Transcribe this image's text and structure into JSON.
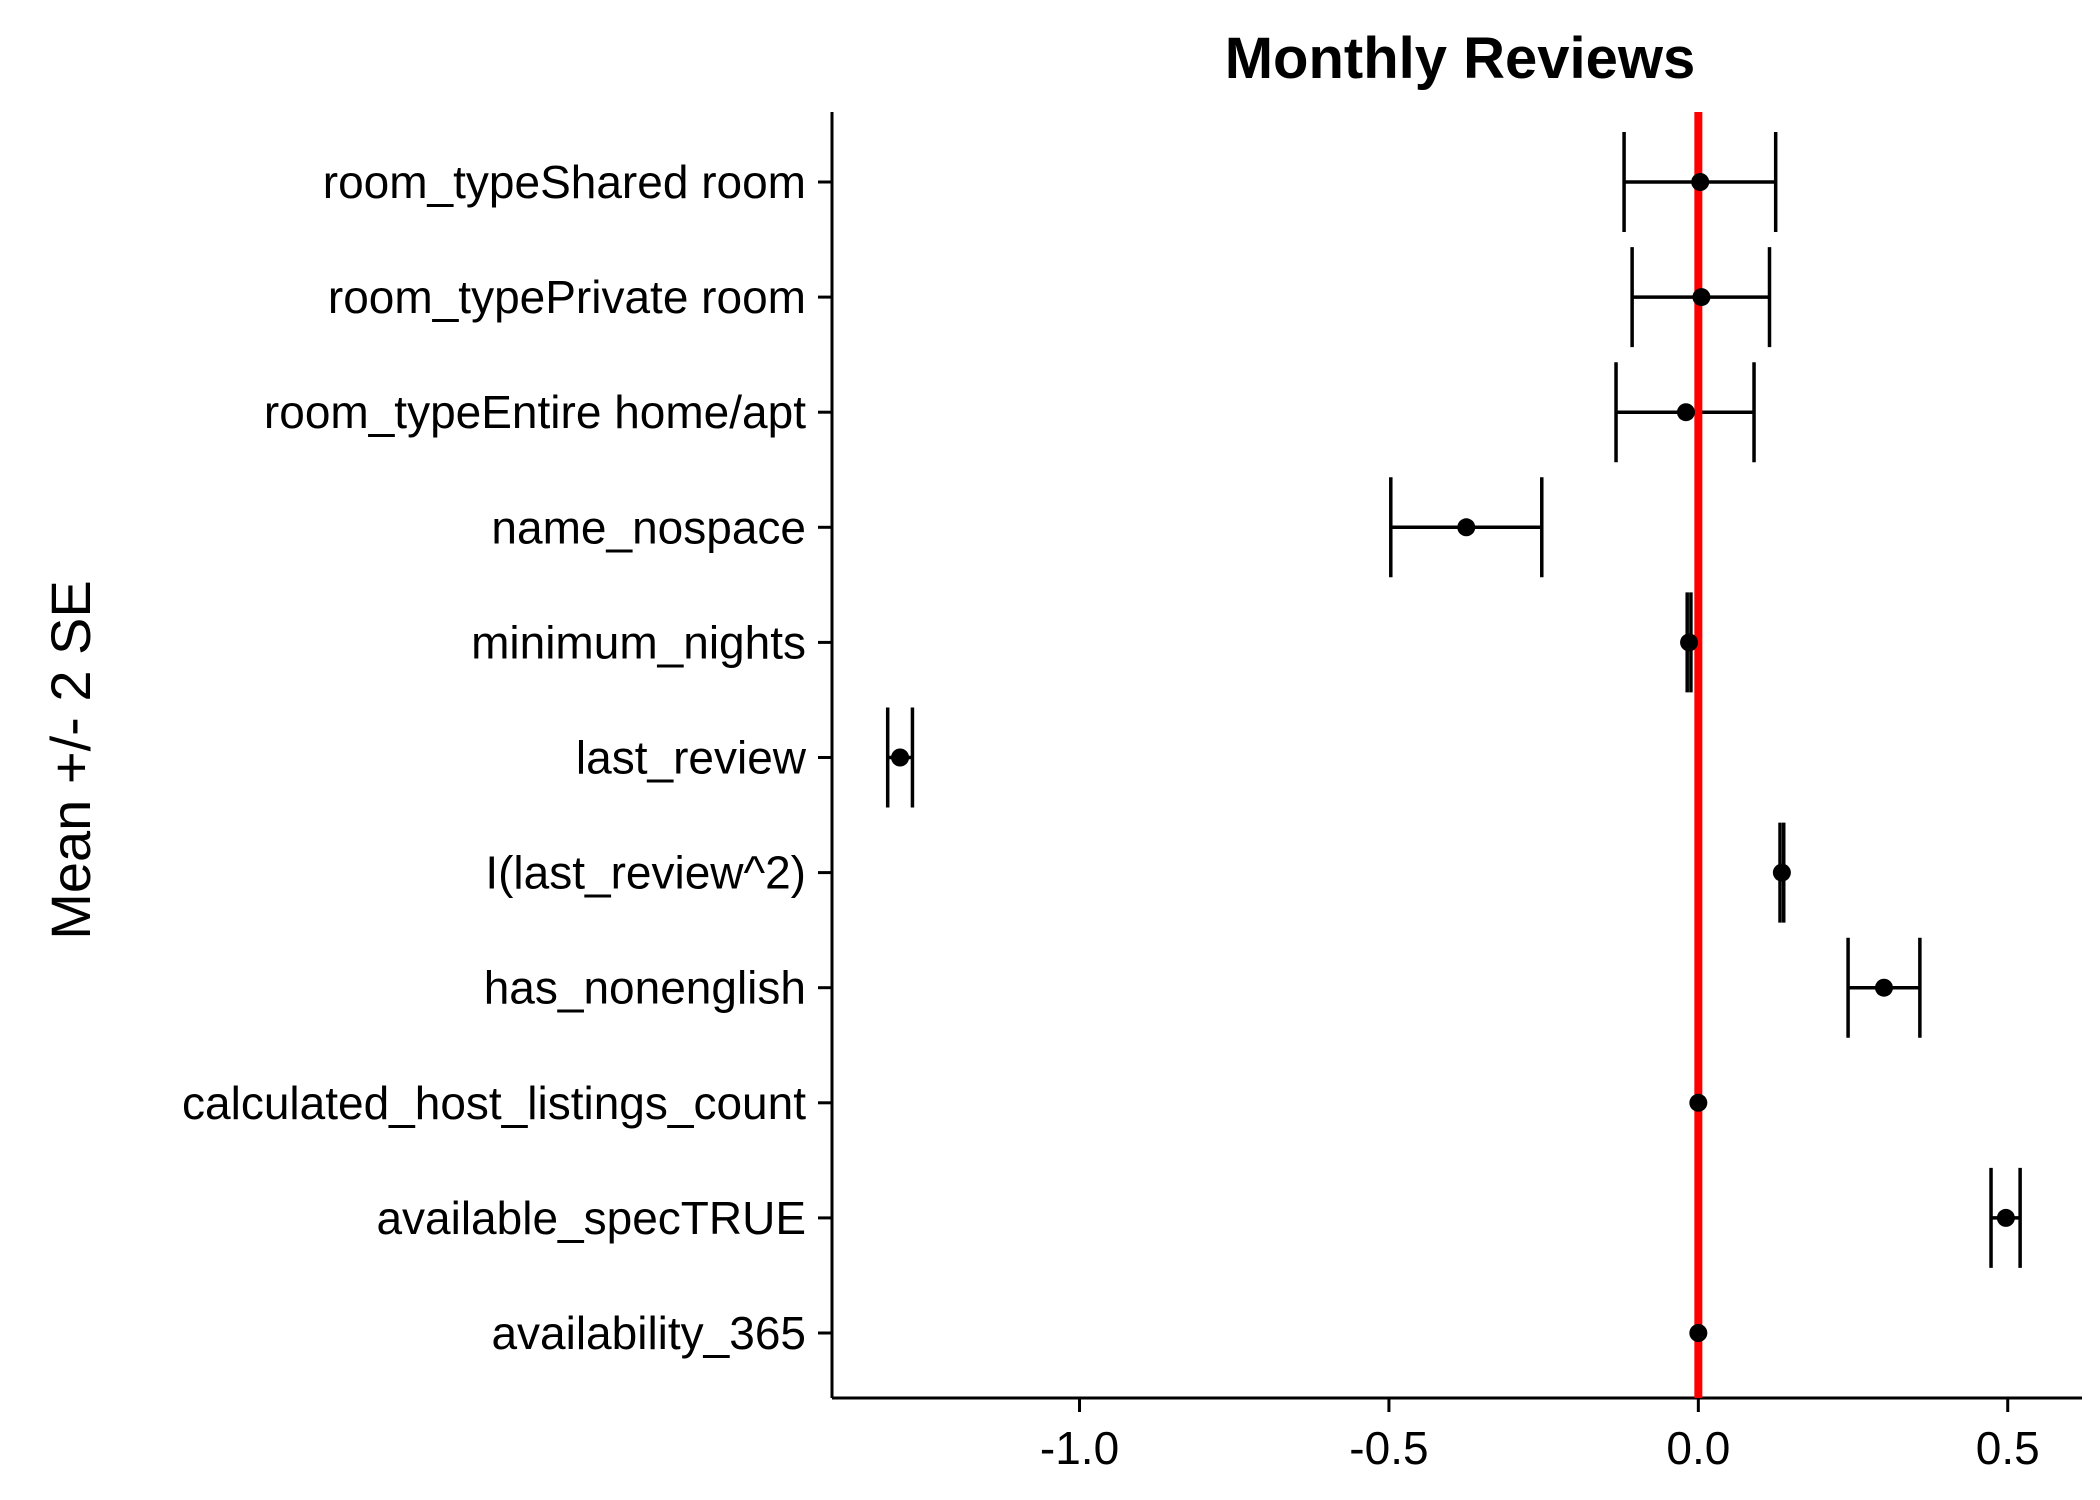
{
  "chart_data": {
    "type": "dot-and-whisker",
    "title": "Monthly Reviews",
    "ylabel": "Mean +/- 2 SE",
    "xlabel": "",
    "xlim": [
      -1.4,
      0.62
    ],
    "x_ticks": [
      -1.0,
      -0.5,
      0.0,
      0.5
    ],
    "x_tick_labels": [
      "-1.0",
      "-0.5",
      "0.0",
      "0.5"
    ],
    "reference_line": {
      "x": 0,
      "color": "#ff0000"
    },
    "grid": false,
    "categories": [
      "room_typeShared room",
      "room_typePrivate room",
      "room_typeEntire home/apt",
      "name_nospace",
      "minimum_nights",
      "last_review",
      "I(last_review^2)",
      "has_nonenglish",
      "calculated_host_listings_count",
      "available_specTRUE",
      "availability_365"
    ],
    "estimates": [
      {
        "mean": 0.003,
        "lower": -0.12,
        "upper": 0.125
      },
      {
        "mean": 0.005,
        "lower": -0.107,
        "upper": 0.115
      },
      {
        "mean": -0.02,
        "lower": -0.133,
        "upper": 0.09
      },
      {
        "mean": -0.375,
        "lower": -0.497,
        "upper": -0.253
      },
      {
        "mean": -0.015,
        "lower": -0.018,
        "upper": -0.012
      },
      {
        "mean": -1.29,
        "lower": -1.31,
        "upper": -1.27
      },
      {
        "mean": 0.135,
        "lower": 0.132,
        "upper": 0.138
      },
      {
        "mean": 0.3,
        "lower": 0.242,
        "upper": 0.358
      },
      {
        "mean": 0.0,
        "lower": -0.003,
        "upper": 0.003
      },
      {
        "mean": 0.497,
        "lower": 0.473,
        "upper": 0.52
      },
      {
        "mean": 0.0,
        "lower": -0.002,
        "upper": 0.002
      }
    ]
  }
}
